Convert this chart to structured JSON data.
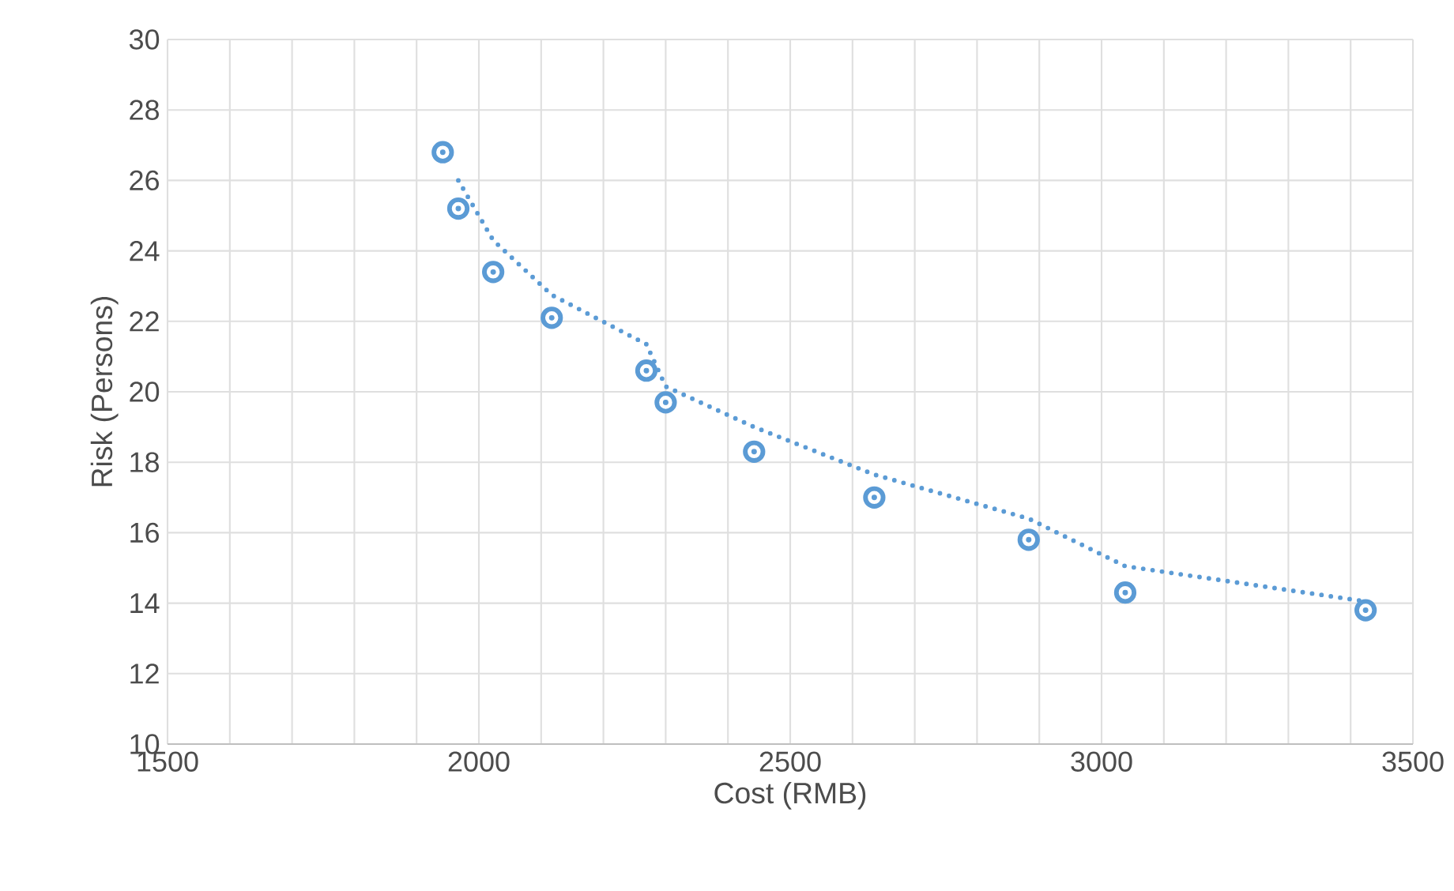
{
  "chart_data": {
    "type": "scatter",
    "xlabel": "Cost (RMB)",
    "ylabel": "Risk (Persons)",
    "xlim": [
      1500,
      3500
    ],
    "ylim": [
      10,
      30
    ],
    "xticks": [
      1500,
      {
        "value": 1600,
        "label": null
      },
      {
        "value": 1700,
        "label": null
      },
      {
        "value": 1800,
        "label": null
      },
      {
        "value": 1900,
        "label": null
      },
      2000,
      {
        "value": 2100,
        "label": null
      },
      {
        "value": 2200,
        "label": null
      },
      {
        "value": 2300,
        "label": null
      },
      {
        "value": 2400,
        "label": null
      },
      2500,
      {
        "value": 2600,
        "label": null
      },
      {
        "value": 2700,
        "label": null
      },
      {
        "value": 2800,
        "label": null
      },
      {
        "value": 2900,
        "label": null
      },
      3000,
      {
        "value": 3100,
        "label": null
      },
      {
        "value": 3200,
        "label": null
      },
      {
        "value": 3300,
        "label": null
      },
      {
        "value": 3400,
        "label": null
      },
      3500
    ],
    "yticks": [
      10,
      12,
      14,
      16,
      18,
      20,
      22,
      24,
      26,
      28,
      30
    ],
    "grid": true,
    "series": [
      {
        "color": "#5b9bd5",
        "marker": "circle",
        "x": [
          1942,
          1967,
          2023,
          2117,
          2269,
          2300,
          2442,
          2635,
          2883,
          3038,
          3424
        ],
        "values": [
          26.8,
          25.2,
          23.4,
          22.1,
          20.6,
          19.7,
          18.3,
          17.0,
          15.8,
          14.3,
          13.8
        ]
      },
      {
        "type": "line",
        "color": "#5b9bd5",
        "marker": "none",
        "line_style": "dotted",
        "x": [
          1967,
          2023,
          2117,
          2269,
          2300,
          2442,
          2635,
          2883,
          3038,
          3424
        ],
        "values": [
          26.0,
          24.3,
          22.75,
          21.35,
          20.15,
          19.0,
          17.65,
          16.4,
          15.05,
          14.05
        ]
      }
    ]
  }
}
